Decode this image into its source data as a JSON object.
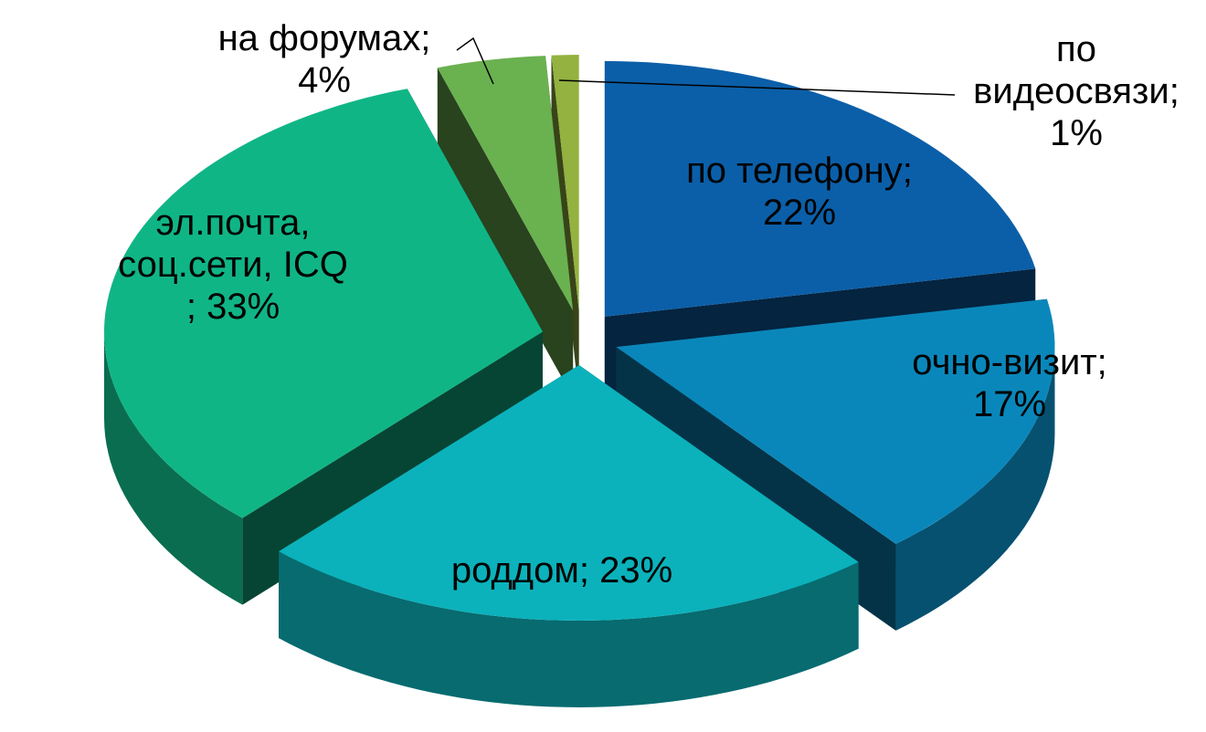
{
  "chart_data": {
    "type": "pie3d",
    "categories": [
      "по телефону;",
      "очно-визит;",
      "роддом;",
      "эл.почта, соц.сети, ICQ",
      "на форумах;",
      "по видеосвязи;"
    ],
    "values": [
      22,
      17,
      23,
      33,
      4,
      1
    ],
    "value_labels": [
      "22%",
      "17%",
      "23%",
      "; 33%",
      "4%",
      "1%"
    ],
    "colors": [
      "#0b5fa8",
      "#0a87ba",
      "#0bb2bb",
      "#10b586",
      "#6ab150",
      "#93b23f"
    ]
  }
}
